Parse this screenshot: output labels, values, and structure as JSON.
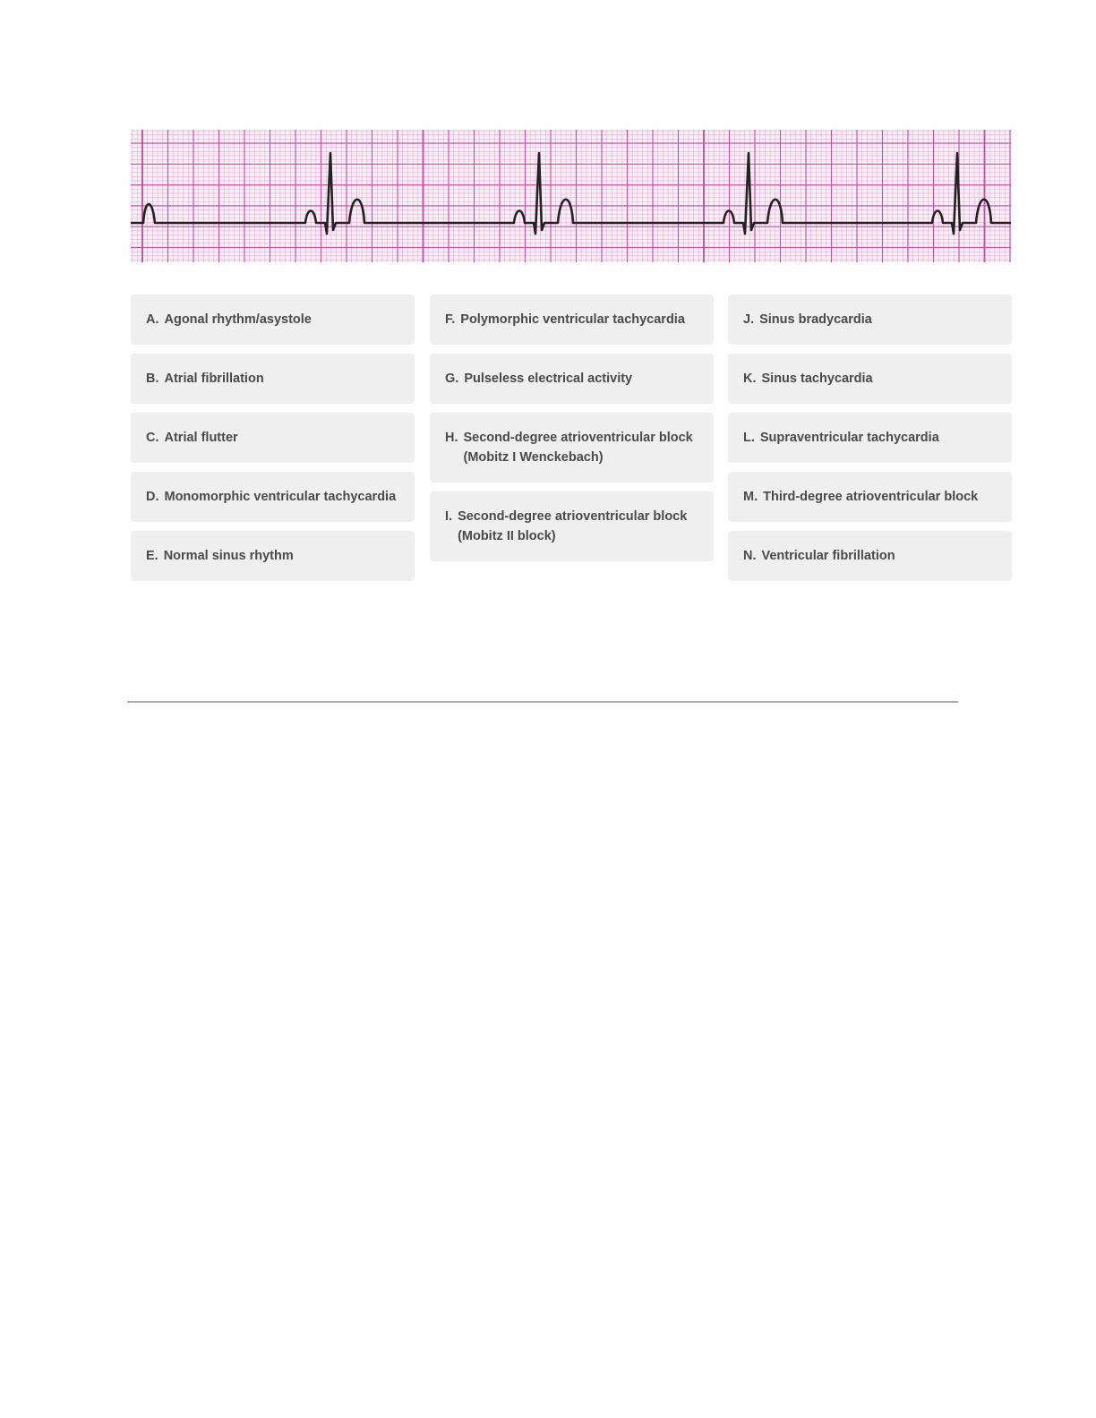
{
  "ecg_strip": {
    "grid_color": "#c0439e",
    "trace_color": "#222222",
    "rhythm_beats": 4
  },
  "options": [
    [
      {
        "letter": "A.",
        "text": "Agonal rhythm/asystole"
      },
      {
        "letter": "B.",
        "text": "Atrial fibrillation"
      },
      {
        "letter": "C.",
        "text": "Atrial flutter"
      },
      {
        "letter": "D.",
        "text": "Monomorphic ventricular tachycardia"
      },
      {
        "letter": "E.",
        "text": "Normal sinus rhythm"
      }
    ],
    [
      {
        "letter": "F.",
        "text": "Polymorphic ventricular tachycardia"
      },
      {
        "letter": "G.",
        "text": "Pulseless electrical activity"
      },
      {
        "letter": "H.",
        "text": "Second-degree atrioventricular block (Mobitz I Wenckebach)"
      },
      {
        "letter": "I.",
        "text": "Second-degree atrioventricular block (Mobitz II block)"
      }
    ],
    [
      {
        "letter": "J.",
        "text": "Sinus bradycardia"
      },
      {
        "letter": "K.",
        "text": "Sinus tachycardia"
      },
      {
        "letter": "L.",
        "text": "Supraventricular tachycardia"
      },
      {
        "letter": "M.",
        "text": "Third-degree atrioventricular block"
      },
      {
        "letter": "N.",
        "text": "Ventricular fibrillation"
      }
    ]
  ]
}
